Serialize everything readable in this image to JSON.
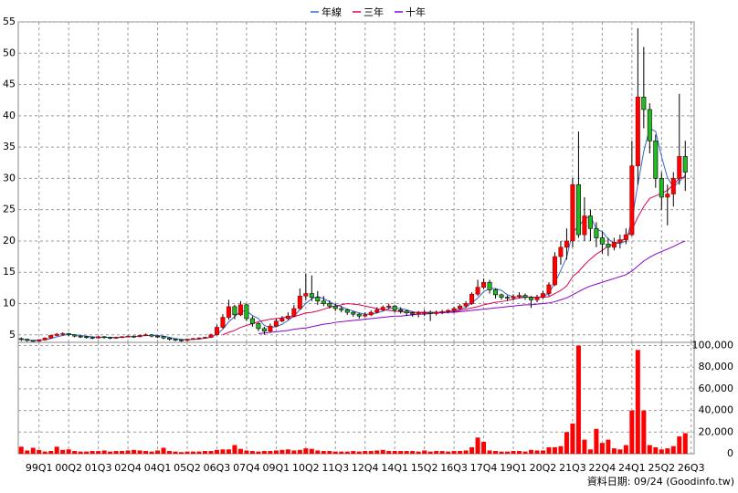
{
  "chart_data": {
    "type": "candlestick",
    "legend": "top",
    "note": "資料日期: 09/24 (Goodinfo.tw)",
    "grid": true,
    "up_color": "#ff0000",
    "down_color": "#22bb22",
    "volume_color": "#ff0000",
    "categories": [
      null,
      null,
      null,
      "99Q1",
      null,
      null,
      null,
      null,
      "00Q2",
      null,
      null,
      null,
      null,
      "01Q3",
      null,
      null,
      null,
      null,
      "02Q4",
      null,
      null,
      null,
      null,
      "04Q1",
      null,
      null,
      null,
      null,
      "05Q2",
      null,
      null,
      null,
      null,
      "06Q3",
      null,
      null,
      null,
      null,
      "07Q4",
      null,
      null,
      null,
      null,
      "09Q1",
      null,
      null,
      null,
      null,
      "10Q2",
      null,
      null,
      null,
      null,
      "11Q3",
      null,
      null,
      null,
      null,
      "12Q4",
      null,
      null,
      null,
      null,
      "14Q1",
      null,
      null,
      null,
      null,
      "15Q2",
      null,
      null,
      null,
      null,
      "16Q3",
      null,
      null,
      null,
      null,
      "17Q4",
      null,
      null,
      null,
      null,
      "19Q1",
      null,
      null,
      null,
      null,
      "20Q2",
      null,
      null,
      null,
      null,
      "21Q3",
      null,
      null,
      null,
      null,
      "22Q4",
      null,
      null,
      null,
      null,
      "24Q1",
      null,
      null,
      null,
      null,
      "25Q2",
      null,
      null,
      null,
      null,
      "26Q3"
    ],
    "open": [
      4.4,
      4.3,
      4.1,
      4.0,
      4.2,
      4.5,
      4.9,
      5.1,
      5.2,
      5.0,
      4.8,
      4.7,
      4.6,
      4.5,
      4.7,
      4.6,
      4.5,
      4.6,
      4.7,
      4.8,
      4.7,
      4.9,
      5.0,
      4.8,
      4.7,
      4.5,
      4.3,
      4.2,
      4.1,
      4.3,
      4.4,
      4.5,
      4.6,
      5.0,
      6.2,
      7.8,
      9.5,
      8.2,
      9.8,
      7.6,
      6.8,
      6.0,
      5.6,
      6.4,
      7.2,
      7.6,
      8.0,
      9.2,
      11.2,
      11.6,
      11.0,
      10.4,
      10.0,
      9.6,
      9.2,
      9.0,
      8.6,
      8.3,
      8.0,
      8.2,
      8.6,
      9.0,
      9.4,
      9.6,
      9.0,
      8.8,
      8.5,
      8.3,
      8.5,
      8.6,
      8.4,
      8.6,
      8.7,
      8.9,
      9.2,
      9.6,
      10.0,
      11.5,
      12.6,
      13.4,
      12.2,
      11.4,
      11.0,
      10.9,
      11.1,
      11.3,
      11.0,
      10.6,
      11.0,
      11.6,
      13.0,
      17.5,
      19.0,
      20.0,
      29.0,
      21.0,
      24.0,
      22.0,
      20.5,
      19.5,
      19.0,
      19.8,
      20.2,
      21.0,
      32.0,
      43.0,
      41.0,
      36.0,
      30.0,
      27.0,
      27.5,
      30.0,
      33.5,
      null
    ],
    "high": [
      4.6,
      4.4,
      4.2,
      4.3,
      4.6,
      5.0,
      5.3,
      5.4,
      5.3,
      5.1,
      4.9,
      4.8,
      4.7,
      4.8,
      4.8,
      4.7,
      4.7,
      4.8,
      4.9,
      4.9,
      5.0,
      5.2,
      5.1,
      4.9,
      4.8,
      4.6,
      4.4,
      4.3,
      4.4,
      4.5,
      4.6,
      4.7,
      5.2,
      6.6,
      8.3,
      10.6,
      9.8,
      10.4,
      10.0,
      8.0,
      7.0,
      6.3,
      6.8,
      7.6,
      8.0,
      8.6,
      9.8,
      12.4,
      14.8,
      14.5,
      12.0,
      11.2,
      10.5,
      10.0,
      9.6,
      9.2,
      8.8,
      8.5,
      8.6,
      8.9,
      9.4,
      9.7,
      10.0,
      9.8,
      9.4,
      9.0,
      8.7,
      8.8,
      9.0,
      8.9,
      8.9,
      9.0,
      9.1,
      9.5,
      9.9,
      10.4,
      11.8,
      13.8,
      14.0,
      13.8,
      12.4,
      11.6,
      11.3,
      11.5,
      11.8,
      11.6,
      11.2,
      11.4,
      12.0,
      13.4,
      18.2,
      20.0,
      22.0,
      30.0,
      37.5,
      27.0,
      25.0,
      23.0,
      21.5,
      20.5,
      20.5,
      21.0,
      22.0,
      36.0,
      54.0,
      51.0,
      42.0,
      37.0,
      31.0,
      29.0,
      31.0,
      43.5,
      36.0,
      null
    ],
    "low": [
      4.0,
      3.9,
      3.9,
      3.9,
      4.1,
      4.4,
      4.8,
      4.9,
      4.8,
      4.6,
      4.5,
      4.4,
      4.3,
      4.4,
      4.4,
      4.3,
      4.4,
      4.5,
      4.6,
      4.5,
      4.6,
      4.8,
      4.6,
      4.5,
      4.3,
      4.1,
      4.0,
      3.9,
      4.0,
      4.2,
      4.3,
      4.4,
      4.5,
      4.9,
      6.0,
      7.4,
      7.5,
      8.0,
      7.2,
      6.3,
      5.6,
      5.0,
      5.4,
      6.2,
      7.0,
      7.4,
      7.8,
      9.0,
      10.5,
      10.4,
      9.8,
      9.6,
      9.2,
      8.8,
      8.6,
      8.2,
      7.9,
      7.6,
      7.8,
      8.0,
      8.4,
      8.8,
      9.1,
      8.6,
      8.4,
      8.0,
      7.9,
      7.8,
      8.0,
      7.2,
      8.1,
      8.3,
      8.4,
      8.6,
      9.0,
      9.3,
      9.8,
      11.2,
      12.3,
      11.6,
      10.8,
      10.6,
      10.4,
      10.5,
      10.8,
      10.6,
      9.3,
      10.2,
      10.7,
      11.2,
      12.8,
      16.2,
      17.0,
      19.0,
      20.5,
      20.0,
      20.0,
      19.0,
      18.0,
      17.6,
      18.5,
      18.8,
      19.5,
      20.8,
      29.0,
      38.0,
      34.0,
      28.5,
      25.0,
      22.5,
      25.5,
      29.0,
      28.0,
      null
    ],
    "close": [
      4.3,
      4.1,
      4.0,
      4.2,
      4.5,
      4.9,
      5.1,
      5.2,
      5.0,
      4.8,
      4.7,
      4.6,
      4.5,
      4.7,
      4.6,
      4.5,
      4.6,
      4.7,
      4.8,
      4.7,
      4.9,
      5.0,
      4.8,
      4.7,
      4.5,
      4.3,
      4.2,
      4.1,
      4.3,
      4.4,
      4.5,
      4.6,
      5.0,
      6.2,
      7.8,
      9.5,
      8.2,
      9.8,
      7.6,
      6.8,
      6.0,
      5.6,
      6.4,
      7.2,
      7.6,
      8.0,
      9.2,
      11.2,
      11.6,
      11.0,
      10.4,
      10.0,
      9.6,
      9.2,
      9.0,
      8.6,
      8.3,
      8.0,
      8.2,
      8.6,
      9.0,
      9.4,
      9.6,
      9.0,
      8.8,
      8.5,
      8.3,
      8.5,
      8.6,
      8.4,
      8.6,
      8.7,
      8.9,
      9.2,
      9.6,
      10.0,
      11.5,
      12.6,
      13.4,
      12.2,
      11.4,
      11.0,
      10.9,
      11.1,
      11.3,
      11.0,
      10.6,
      11.0,
      11.6,
      13.0,
      17.5,
      19.0,
      20.0,
      29.0,
      21.0,
      24.0,
      22.0,
      20.5,
      19.5,
      19.0,
      19.8,
      20.2,
      21.0,
      32.0,
      43.0,
      41.0,
      36.0,
      30.0,
      27.0,
      27.5,
      30.0,
      33.5,
      31.0,
      null
    ],
    "volume": [
      6500,
      3000,
      5500,
      3500,
      2000,
      2500,
      6500,
      3500,
      4000,
      2500,
      2000,
      2000,
      2500,
      2500,
      3000,
      2000,
      2500,
      2500,
      3000,
      3500,
      3000,
      2500,
      2000,
      3000,
      5500,
      2500,
      2000,
      1500,
      2000,
      2000,
      2000,
      2500,
      2500,
      3500,
      4000,
      4000,
      8000,
      4500,
      3000,
      2500,
      2000,
      2500,
      2500,
      3000,
      3500,
      4000,
      3000,
      3500,
      5000,
      4500,
      3000,
      2500,
      2500,
      2000,
      2000,
      2000,
      2500,
      2000,
      2500,
      2500,
      3000,
      3500,
      2500,
      2500,
      2500,
      2500,
      2500,
      2000,
      3000,
      2000,
      2500,
      2500,
      2000,
      2500,
      2500,
      3000,
      6000,
      15000,
      11000,
      3000,
      2500,
      2000,
      2000,
      2500,
      2500,
      2000,
      3500,
      3000,
      3000,
      6000,
      6000,
      7000,
      20000,
      28000,
      100000,
      13000,
      4000,
      23000,
      10000,
      13000,
      5000,
      4000,
      8000,
      40000,
      96000,
      40000,
      8000,
      6000,
      4000,
      5000,
      7000,
      16000,
      19000,
      null
    ],
    "series": [
      {
        "name": "年線",
        "color": "#3366cc",
        "values": [
          4.3,
          4.2,
          4.1,
          4.2,
          4.2,
          4.4,
          4.7,
          4.9,
          5.1,
          5.0,
          4.9,
          4.8,
          4.7,
          4.6,
          4.6,
          4.6,
          4.6,
          4.6,
          4.7,
          4.7,
          4.8,
          4.9,
          4.9,
          4.9,
          4.8,
          4.6,
          4.4,
          4.3,
          4.2,
          4.3,
          4.3,
          4.5,
          4.6,
          5.1,
          5.9,
          7.1,
          7.9,
          8.8,
          8.8,
          8.1,
          7.6,
          6.5,
          6.2,
          6.3,
          6.7,
          7.3,
          8.0,
          9.0,
          10.0,
          10.8,
          11.1,
          10.8,
          10.3,
          9.8,
          9.5,
          9.1,
          8.8,
          8.5,
          8.3,
          8.3,
          8.5,
          8.8,
          9.2,
          9.3,
          9.2,
          9.0,
          8.7,
          8.5,
          8.5,
          8.5,
          8.5,
          8.6,
          8.7,
          8.9,
          9.1,
          9.4,
          10.1,
          10.9,
          11.9,
          12.4,
          12.4,
          12.1,
          11.4,
          11.1,
          11.1,
          11.1,
          11.0,
          11.0,
          11.1,
          11.6,
          13.3,
          15.3,
          17.4,
          21.4,
          22.3,
          23.5,
          24.0,
          21.9,
          21.5,
          20.3,
          19.7,
          19.6,
          20.0,
          23.3,
          29.0,
          34.3,
          38.0,
          37.5,
          33.5,
          30.1,
          28.6,
          29.5,
          30.5,
          null
        ]
      },
      {
        "name": "三年",
        "color": "#dd0055",
        "values": [
          null,
          null,
          null,
          null,
          null,
          null,
          null,
          null,
          null,
          null,
          null,
          null,
          null,
          null,
          null,
          null,
          null,
          null,
          null,
          null,
          null,
          null,
          null,
          null,
          null,
          null,
          null,
          null,
          null,
          null,
          null,
          null,
          null,
          null,
          5.0,
          5.4,
          5.7,
          6.2,
          6.5,
          6.8,
          7.1,
          7.3,
          7.5,
          7.6,
          7.7,
          7.9,
          7.9,
          8.2,
          8.5,
          8.6,
          8.8,
          9.1,
          9.4,
          9.6,
          9.8,
          10.0,
          9.9,
          9.8,
          9.6,
          9.4,
          9.2,
          9.0,
          8.9,
          8.8,
          8.7,
          8.6,
          8.6,
          8.6,
          8.6,
          8.6,
          8.6,
          8.6,
          8.6,
          8.7,
          8.9,
          9.1,
          9.3,
          9.5,
          9.8,
          10.0,
          10.2,
          10.3,
          10.5,
          10.7,
          10.9,
          11.0,
          11.0,
          11.0,
          11.0,
          11.1,
          11.6,
          12.1,
          12.8,
          14.3,
          15.1,
          16.2,
          17.1,
          17.9,
          18.5,
          19.2,
          19.5,
          19.9,
          20.5,
          21.8,
          23.8,
          25.5,
          26.8,
          27.2,
          27.6,
          28.1,
          29.0,
          30.0,
          30.2,
          null
        ]
      },
      {
        "name": "十年",
        "color": "#8800cc",
        "values": [
          null,
          null,
          null,
          null,
          null,
          null,
          null,
          null,
          null,
          null,
          null,
          null,
          null,
          null,
          null,
          null,
          null,
          null,
          null,
          null,
          null,
          null,
          null,
          null,
          null,
          null,
          null,
          null,
          null,
          null,
          null,
          null,
          null,
          null,
          null,
          null,
          null,
          null,
          null,
          null,
          5.2,
          5.3,
          5.4,
          5.5,
          5.6,
          5.7,
          5.9,
          6.0,
          6.1,
          6.3,
          6.5,
          6.7,
          6.8,
          7.0,
          7.1,
          7.2,
          7.3,
          7.4,
          7.5,
          7.6,
          7.7,
          7.8,
          7.9,
          8.0,
          8.0,
          8.1,
          8.2,
          8.3,
          8.3,
          8.4,
          8.5,
          8.5,
          8.6,
          8.6,
          8.7,
          8.8,
          8.9,
          9.0,
          9.1,
          9.2,
          9.3,
          9.4,
          9.5,
          9.6,
          9.7,
          9.8,
          9.8,
          9.9,
          10.0,
          10.1,
          10.3,
          10.6,
          10.9,
          11.4,
          11.9,
          12.4,
          12.8,
          13.1,
          13.4,
          13.7,
          14.0,
          14.3,
          14.6,
          15.2,
          16.0,
          16.8,
          17.4,
          17.9,
          18.3,
          18.7,
          19.1,
          19.6,
          20.0,
          null
        ]
      }
    ],
    "ylim": [
      3.8,
      55
    ],
    "yticks": [
      5,
      10,
      15,
      20,
      25,
      30,
      35,
      40,
      45,
      50,
      55
    ],
    "volume_ylim": [
      0,
      103000
    ],
    "volume_yticks": [
      0,
      {
        "value": 20000,
        "label": "20,000"
      },
      {
        "value": 40000,
        "label": "40,000"
      },
      {
        "value": 60000,
        "label": "60,000"
      },
      {
        "value": 80000,
        "label": "80,000"
      },
      {
        "value": 100000,
        "label": "100,000"
      }
    ]
  }
}
